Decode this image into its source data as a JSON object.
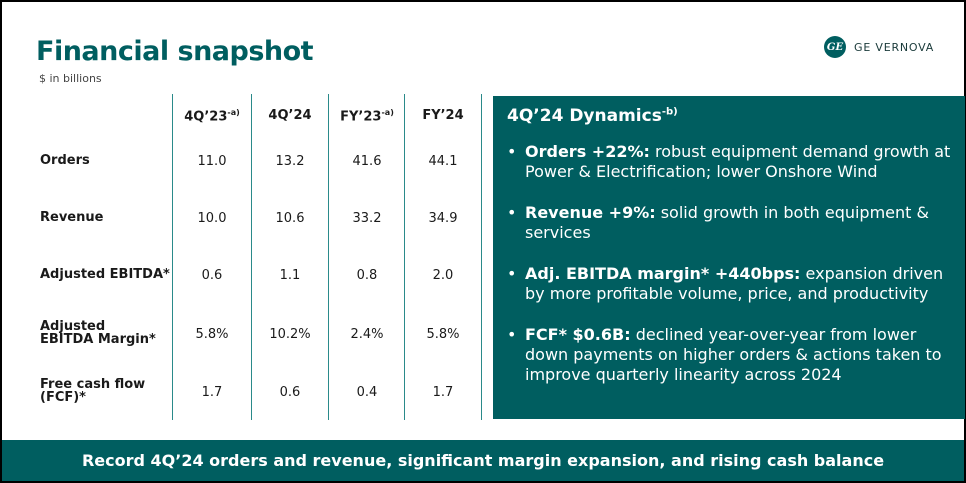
{
  "header": {
    "title": "Financial snapshot",
    "subtitle": "$ in billions",
    "logo_mark": "GE",
    "logo_text": "GE VERNOVA"
  },
  "table": {
    "columns": [
      {
        "label": "4Q’23",
        "note": "-a)"
      },
      {
        "label": "4Q’24",
        "note": ""
      },
      {
        "label": "FY’23",
        "note": "-a)"
      },
      {
        "label": "FY’24",
        "note": ""
      }
    ],
    "rows": [
      {
        "label": "Orders",
        "values": [
          "11.0",
          "13.2",
          "41.6",
          "44.1"
        ]
      },
      {
        "label": "Revenue",
        "values": [
          "10.0",
          "10.6",
          "33.2",
          "34.9"
        ]
      },
      {
        "label": "Adjusted EBITDA*",
        "values": [
          "0.6",
          "1.1",
          "0.8",
          "2.0"
        ]
      },
      {
        "label": "Adjusted EBITDA Margin*",
        "values": [
          "5.8%",
          "10.2%",
          "2.4%",
          "5.8%"
        ]
      },
      {
        "label": "Free cash flow (FCF)*",
        "values": [
          "1.7",
          "0.6",
          "0.4",
          "1.7"
        ]
      }
    ]
  },
  "dynamics": {
    "title": "4Q’24 Dynamics",
    "title_note": "-b)",
    "bullets": [
      {
        "bold": "Orders +22%:",
        "text": " robust equipment demand growth at Power & Electrification; lower Onshore Wind"
      },
      {
        "bold": "Revenue +9%:",
        "text": " solid growth in both equipment & services"
      },
      {
        "bold": "Adj. EBITDA margin* +440bps:",
        "text": " expansion driven by more profitable volume, price, and productivity"
      },
      {
        "bold": "FCF* $0.6B:",
        "text": " declined year-over-year from lower down payments on higher orders & actions taken to improve quarterly linearity across 2024"
      }
    ]
  },
  "footer": {
    "text": "Record 4Q’24 orders and revenue, significant margin expansion, and rising cash balance"
  },
  "colors": {
    "brand_teal": "#005e60",
    "divider": "#2a8a8a",
    "text": "#1a1a1a"
  }
}
